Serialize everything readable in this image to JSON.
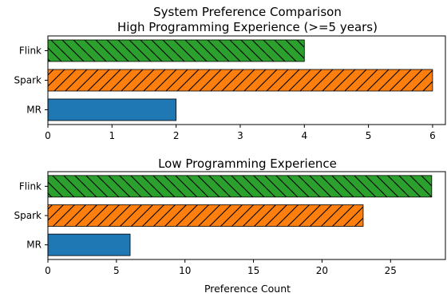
{
  "chart_data": [
    {
      "type": "bar",
      "orientation": "horizontal",
      "title": "System Preference Comparison",
      "subtitle": "High Programming Experience (>=5 years)",
      "categories": [
        "MR",
        "Spark",
        "Flink"
      ],
      "values": [
        2,
        6,
        4
      ],
      "colors": [
        "#1f77b4",
        "#ff7f0e",
        "#2ca02c"
      ],
      "hatches": [
        "none",
        "forward-diagonal",
        "back-diagonal"
      ],
      "xlim": [
        0,
        6.2
      ],
      "xticks": [
        0,
        1,
        2,
        3,
        4,
        5,
        6
      ],
      "xlabel": "",
      "ylabel": "",
      "grid": false
    },
    {
      "type": "bar",
      "orientation": "horizontal",
      "title": "Low Programming Experience",
      "subtitle": "",
      "categories": [
        "MR",
        "Spark",
        "Flink"
      ],
      "values": [
        6,
        23,
        28
      ],
      "colors": [
        "#1f77b4",
        "#ff7f0e",
        "#2ca02c"
      ],
      "hatches": [
        "none",
        "forward-diagonal",
        "back-diagonal"
      ],
      "xlim": [
        0,
        29
      ],
      "xticks": [
        0,
        5,
        10,
        15,
        20,
        25
      ],
      "xlabel": "Preference Count",
      "ylabel": "",
      "grid": false
    }
  ]
}
